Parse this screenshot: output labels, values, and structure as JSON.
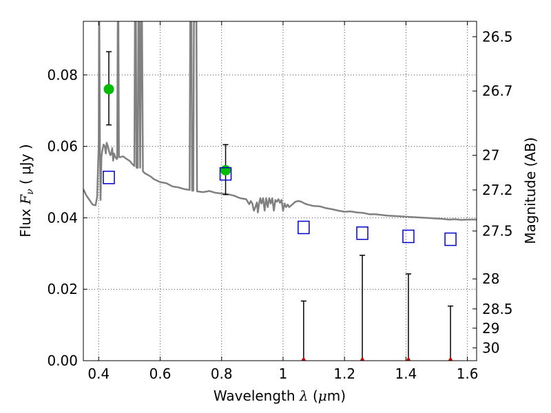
{
  "chart_data": {
    "type": "scatter",
    "xlabel": {
      "prefix": "Wavelength ",
      "symbol": "λ",
      "units_open": " (",
      "mu": "μ",
      "units_close": "m)"
    },
    "ylabel": {
      "prefix": "Flux  ",
      "symbol": "F",
      "subscript": "ν",
      "units": "  ( μJy )"
    },
    "ylabel_right": "Magnitude (AB)",
    "xlim": [
      0.35,
      1.63
    ],
    "ylim": [
      0.0,
      0.095
    ],
    "x_ticks": [
      0.4,
      0.6,
      0.8,
      1.0,
      1.2,
      1.4,
      1.6
    ],
    "x_tick_labels": [
      "0.4",
      "0.6",
      "0.8",
      "1",
      "1.2",
      "1.4",
      "1.6"
    ],
    "y_ticks": [
      0.0,
      0.02,
      0.04,
      0.06,
      0.08
    ],
    "y_tick_labels": [
      "0.00",
      "0.02",
      "0.04",
      "0.06",
      "0.08"
    ],
    "right_ticks": [
      {
        "label": "26.5",
        "flux": 0.0907
      },
      {
        "label": "26.7",
        "flux": 0.0755
      },
      {
        "label": "27",
        "flux": 0.0575
      },
      {
        "label": "27.2",
        "flux": 0.0478
      },
      {
        "label": "27.5",
        "flux": 0.0363
      },
      {
        "label": "28",
        "flux": 0.0229
      },
      {
        "label": "28.5",
        "flux": 0.0145
      },
      {
        "label": "29",
        "flux": 0.0091
      },
      {
        "label": "30",
        "flux": 0.0036
      }
    ],
    "grid": true,
    "colors": {
      "model": "#808080",
      "detection": "#00bb00",
      "model_phot": "#0000cc",
      "upper_limit": "#cc0000",
      "errorbar": "#000000"
    },
    "series": [
      {
        "name": "model SED",
        "kind": "line",
        "points": [
          [
            0.35,
            0.048
          ],
          [
            0.36,
            0.0462
          ],
          [
            0.37,
            0.045
          ],
          [
            0.38,
            0.0437
          ],
          [
            0.39,
            0.0435
          ],
          [
            0.395,
            0.046
          ],
          [
            0.398,
            0.055
          ],
          [
            0.4,
            0.06
          ],
          [
            0.401,
            0.095
          ],
          [
            0.402,
            0.095
          ],
          [
            0.404,
            0.06
          ],
          [
            0.406,
            0.045
          ],
          [
            0.409,
            0.057
          ],
          [
            0.412,
            0.059
          ],
          [
            0.416,
            0.0605
          ],
          [
            0.42,
            0.06
          ],
          [
            0.423,
            0.058
          ],
          [
            0.426,
            0.061
          ],
          [
            0.43,
            0.06
          ],
          [
            0.434,
            0.0585
          ],
          [
            0.438,
            0.0575
          ],
          [
            0.441,
            0.058
          ],
          [
            0.444,
            0.0595
          ],
          [
            0.447,
            0.056
          ],
          [
            0.45,
            0.058
          ],
          [
            0.454,
            0.057
          ],
          [
            0.458,
            0.0565
          ],
          [
            0.46,
            0.0565
          ],
          [
            0.462,
            0.095
          ],
          [
            0.464,
            0.095
          ],
          [
            0.466,
            0.057
          ],
          [
            0.47,
            0.057
          ],
          [
            0.48,
            0.0572
          ],
          [
            0.49,
            0.0565
          ],
          [
            0.5,
            0.056
          ],
          [
            0.51,
            0.055
          ],
          [
            0.516,
            0.0545
          ],
          [
            0.518,
            0.095
          ],
          [
            0.521,
            0.095
          ],
          [
            0.523,
            0.054
          ],
          [
            0.527,
            0.054
          ],
          [
            0.529,
            0.095
          ],
          [
            0.532,
            0.095
          ],
          [
            0.535,
            0.054
          ],
          [
            0.538,
            0.095
          ],
          [
            0.541,
            0.095
          ],
          [
            0.544,
            0.053
          ],
          [
            0.55,
            0.0525
          ],
          [
            0.56,
            0.052
          ],
          [
            0.57,
            0.0515
          ],
          [
            0.58,
            0.0508
          ],
          [
            0.6,
            0.05
          ],
          [
            0.62,
            0.0497
          ],
          [
            0.64,
            0.0488
          ],
          [
            0.66,
            0.0485
          ],
          [
            0.68,
            0.048
          ],
          [
            0.696,
            0.0478
          ],
          [
            0.698,
            0.095
          ],
          [
            0.702,
            0.095
          ],
          [
            0.704,
            0.0476
          ],
          [
            0.708,
            0.0476
          ],
          [
            0.71,
            0.095
          ],
          [
            0.713,
            0.095
          ],
          [
            0.715,
            0.095
          ],
          [
            0.718,
            0.095
          ],
          [
            0.72,
            0.0474
          ],
          [
            0.74,
            0.0472
          ],
          [
            0.76,
            0.0475
          ],
          [
            0.78,
            0.047
          ],
          [
            0.8,
            0.0468
          ],
          [
            0.82,
            0.0466
          ],
          [
            0.84,
            0.0462
          ],
          [
            0.86,
            0.0455
          ],
          [
            0.88,
            0.0452
          ],
          [
            0.89,
            0.0438
          ],
          [
            0.895,
            0.0447
          ],
          [
            0.9,
            0.044
          ],
          [
            0.905,
            0.042
          ],
          [
            0.91,
            0.043
          ],
          [
            0.915,
            0.0443
          ],
          [
            0.918,
            0.0415
          ],
          [
            0.922,
            0.044
          ],
          [
            0.926,
            0.0455
          ],
          [
            0.93,
            0.044
          ],
          [
            0.935,
            0.0455
          ],
          [
            0.94,
            0.042
          ],
          [
            0.945,
            0.0455
          ],
          [
            0.95,
            0.043
          ],
          [
            0.955,
            0.0455
          ],
          [
            0.96,
            0.044
          ],
          [
            0.965,
            0.0455
          ],
          [
            0.97,
            0.042
          ],
          [
            0.975,
            0.045
          ],
          [
            0.98,
            0.0445
          ],
          [
            0.985,
            0.0452
          ],
          [
            0.99,
            0.0442
          ],
          [
            0.995,
            0.045
          ],
          [
            1.0,
            0.042
          ],
          [
            1.005,
            0.044
          ],
          [
            1.01,
            0.043
          ],
          [
            1.015,
            0.0437
          ],
          [
            1.02,
            0.043
          ],
          [
            1.03,
            0.0437
          ],
          [
            1.04,
            0.0445
          ],
          [
            1.05,
            0.0447
          ],
          [
            1.06,
            0.0445
          ],
          [
            1.07,
            0.044
          ],
          [
            1.08,
            0.0437
          ],
          [
            1.1,
            0.0433
          ],
          [
            1.12,
            0.0432
          ],
          [
            1.14,
            0.0427
          ],
          [
            1.16,
            0.0424
          ],
          [
            1.18,
            0.042
          ],
          [
            1.2,
            0.0417
          ],
          [
            1.22,
            0.0418
          ],
          [
            1.24,
            0.0415
          ],
          [
            1.26,
            0.0414
          ],
          [
            1.28,
            0.041
          ],
          [
            1.3,
            0.041
          ],
          [
            1.32,
            0.0408
          ],
          [
            1.34,
            0.0406
          ],
          [
            1.36,
            0.0405
          ],
          [
            1.38,
            0.0404
          ],
          [
            1.4,
            0.0403
          ],
          [
            1.42,
            0.0402
          ],
          [
            1.44,
            0.0401
          ],
          [
            1.46,
            0.04
          ],
          [
            1.48,
            0.0399
          ],
          [
            1.5,
            0.0398
          ],
          [
            1.52,
            0.0397
          ],
          [
            1.54,
            0.0395
          ],
          [
            1.56,
            0.0396
          ],
          [
            1.58,
            0.0394
          ],
          [
            1.6,
            0.0395
          ],
          [
            1.63,
            0.0395
          ]
        ]
      },
      {
        "name": "detections",
        "kind": "errorbar",
        "marker": "circle",
        "points": [
          {
            "x": 0.433,
            "y": 0.076,
            "ylow": 0.066,
            "yhigh": 0.0865
          },
          {
            "x": 0.813,
            "y": 0.0533,
            "ylow": 0.0465,
            "yhigh": 0.0605
          }
        ]
      },
      {
        "name": "model photometry",
        "kind": "scatter",
        "marker": "open-square",
        "points": [
          {
            "x": 0.433,
            "y": 0.0513
          },
          {
            "x": 0.813,
            "y": 0.0523
          },
          {
            "x": 1.067,
            "y": 0.0373
          },
          {
            "x": 1.258,
            "y": 0.0357
          },
          {
            "x": 1.408,
            "y": 0.0348
          },
          {
            "x": 1.545,
            "y": 0.034
          }
        ]
      },
      {
        "name": "upper limits",
        "kind": "errorbar",
        "marker": "triangle",
        "points": [
          {
            "x": 1.067,
            "y": 0.0,
            "ylow": 0.0,
            "yhigh": 0.0167
          },
          {
            "x": 1.258,
            "y": 0.0,
            "ylow": 0.0,
            "yhigh": 0.0295
          },
          {
            "x": 1.408,
            "y": 0.0,
            "ylow": 0.0,
            "yhigh": 0.0243
          },
          {
            "x": 1.545,
            "y": 0.0,
            "ylow": 0.0,
            "yhigh": 0.0153
          }
        ]
      }
    ]
  }
}
